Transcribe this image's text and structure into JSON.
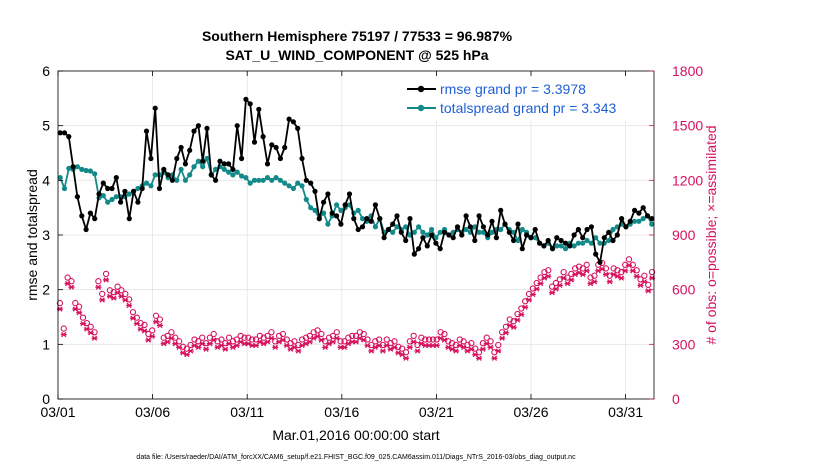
{
  "chart_data": {
    "type": "line",
    "title": "Southern Hemisphere 75197 / 77533 = 96.987%",
    "subtitle": "SAT_U_WIND_COMPONENT @ 525 hPa",
    "xlabel": "Mar.01,2016 00:00:00 start",
    "ylabel": "rmse and totalspread",
    "ylabel_right": "# of obs: o=possible; ×=assimilated",
    "footer": "data file: /Users/raeder/DAI/ATM_forcXX/CAM6_setup/f.e21.FHIST_BGC.f09_025.CAM6assim.011/Diags_NTrS_2016-03/obs_diag_output.nc",
    "xlim": [
      0,
      31.5
    ],
    "ylim": [
      0,
      6
    ],
    "ylim_right": [
      0,
      1800
    ],
    "x_ticks": [
      {
        "value": 0,
        "label": "03/01"
      },
      {
        "value": 5,
        "label": "03/06"
      },
      {
        "value": 10,
        "label": "03/11"
      },
      {
        "value": 15,
        "label": "03/16"
      },
      {
        "value": 20,
        "label": "03/21"
      },
      {
        "value": 25,
        "label": "03/26"
      },
      {
        "value": 30,
        "label": "03/31"
      }
    ],
    "y_ticks": [
      "0",
      "1",
      "2",
      "3",
      "4",
      "5",
      "6"
    ],
    "y_ticks_right": [
      "0",
      "300",
      "600",
      "900",
      "1200",
      "1500",
      "1800"
    ],
    "grid": true,
    "legend_position": "top-right",
    "colors": {
      "rmse": "#000000",
      "spread": "#138a8a",
      "obs": "#d6125f",
      "legend_text": "#1f5fd6"
    },
    "series": [
      {
        "name": "rmse grand pr = 3.3978",
        "axis": "left",
        "values": [
          4.87,
          4.87,
          4.8,
          4.25,
          3.7,
          3.35,
          3.1,
          3.4,
          3.3,
          3.75,
          3.95,
          3.85,
          3.85,
          4.05,
          3.6,
          3.8,
          3.3,
          3.8,
          3.6,
          3.85,
          4.9,
          4.4,
          5.32,
          3.85,
          4.2,
          4.1,
          4.0,
          4.4,
          4.6,
          4.3,
          4.55,
          4.9,
          5.0,
          4.35,
          4.95,
          4.1,
          4.0,
          4.35,
          4.3,
          4.3,
          4.2,
          5.0,
          4.4,
          5.48,
          5.4,
          4.7,
          5.3,
          4.8,
          4.3,
          4.65,
          4.6,
          4.4,
          4.6,
          5.12,
          5.07,
          4.95,
          4.4,
          4.0,
          3.95,
          3.8,
          3.3,
          3.6,
          3.75,
          3.4,
          3.35,
          3.2,
          3.55,
          3.75,
          3.3,
          3.1,
          3.15,
          3.3,
          3.25,
          3.55,
          3.3,
          2.95,
          3.1,
          3.2,
          3.35,
          3.05,
          2.9,
          3.3,
          2.65,
          2.75,
          2.95,
          2.8,
          3.0,
          2.85,
          2.75,
          3.05,
          3.0,
          2.95,
          3.15,
          3.0,
          3.35,
          3.15,
          2.9,
          3.35,
          3.15,
          3.0,
          3.25,
          2.95,
          3.45,
          3.2,
          3.05,
          2.9,
          3.2,
          2.75,
          3.0,
          2.95,
          3.1,
          2.85,
          2.8,
          2.9,
          2.75,
          2.95,
          2.9,
          2.85,
          2.8,
          3.0,
          3.1,
          2.95,
          3.1,
          3.15,
          2.65,
          2.5,
          2.95,
          3.05,
          2.9,
          3.0,
          3.3,
          3.15,
          3.25,
          3.45,
          3.4,
          3.5,
          3.35,
          3.3
        ]
      },
      {
        "name": "totalspread grand pr = 3.343",
        "axis": "left",
        "values": [
          4.05,
          3.85,
          4.22,
          4.2,
          4.25,
          4.2,
          4.18,
          4.17,
          4.12,
          3.68,
          3.72,
          3.6,
          3.65,
          3.7,
          3.7,
          3.7,
          3.75,
          3.8,
          3.85,
          3.9,
          3.95,
          3.9,
          4.1,
          4.1,
          4.15,
          4.05,
          4.1,
          4.0,
          4.2,
          4.0,
          4.1,
          4.25,
          4.35,
          4.25,
          4.4,
          4.1,
          4.2,
          4.25,
          4.2,
          4.15,
          4.1,
          4.15,
          4.08,
          4.05,
          3.95,
          4.0,
          4.0,
          4.0,
          4.05,
          4.0,
          4.05,
          4.0,
          3.95,
          3.9,
          3.85,
          3.95,
          3.9,
          3.65,
          3.5,
          3.45,
          3.3,
          3.4,
          3.2,
          3.35,
          3.55,
          3.45,
          3.5,
          3.55,
          3.4,
          3.45,
          3.3,
          3.25,
          3.35,
          3.15,
          3.3,
          3.05,
          3.1,
          3.05,
          3.15,
          3.1,
          3.15,
          3.0,
          3.05,
          3.15,
          3.05,
          3.0,
          3.1,
          2.95,
          3.05,
          3.1,
          3.0,
          3.05,
          3.1,
          3.05,
          3.1,
          3.05,
          3.15,
          3.05,
          3.05,
          2.95,
          3.05,
          3.1,
          3.1,
          3.2,
          3.1,
          3.05,
          2.9,
          3.1,
          3.05,
          2.95,
          2.95,
          2.85,
          2.8,
          2.85,
          2.75,
          2.8,
          2.8,
          2.75,
          2.85,
          2.8,
          2.85,
          2.85,
          2.9,
          2.85,
          2.95,
          2.85,
          2.85,
          2.9,
          3.1,
          3.15,
          3.2,
          3.15,
          3.2,
          3.25,
          3.25,
          3.3,
          3.35,
          3.2
        ]
      },
      {
        "name": "possible",
        "axis": "right",
        "values": [
          510,
          370,
          650,
          630,
          510,
          490,
          430,
          400,
          380,
          350,
          630,
          560,
          670,
          580,
          570,
          600,
          580,
          560,
          530,
          460,
          430,
          400,
          390,
          340,
          360,
          440,
          420,
          320,
          330,
          350,
          320,
          300,
          270,
          260,
          280,
          310,
          300,
          320,
          290,
          320,
          340,
          300,
          310,
          290,
          320,
          300,
          310,
          330,
          320,
          320,
          310,
          310,
          330,
          320,
          330,
          350,
          300,
          330,
          340,
          310,
          290,
          300,
          280,
          310,
          320,
          330,
          350,
          360,
          340,
          300,
          320,
          330,
          350,
          300,
          300,
          320,
          330,
          330,
          350,
          340,
          310,
          280,
          300,
          310,
          280,
          310,
          290,
          300,
          270,
          260,
          240,
          300,
          330,
          280,
          320,
          310,
          310,
          310,
          310,
          350,
          340,
          300,
          290,
          280,
          310,
          300,
          280,
          290,
          260,
          240,
          290,
          320,
          300,
          240,
          280,
          350,
          380,
          420,
          410,
          450,
          480,
          520,
          560,
          590,
          620,
          650,
          680,
          690,
          600,
          620,
          640,
          680,
          650,
          670,
          700,
          710,
          700,
          720,
          650,
          660,
          720,
          730,
          700,
          660,
          700,
          690,
          680,
          720,
          750,
          720,
          690,
          640,
          660,
          610,
          680
        ]
      }
    ]
  }
}
